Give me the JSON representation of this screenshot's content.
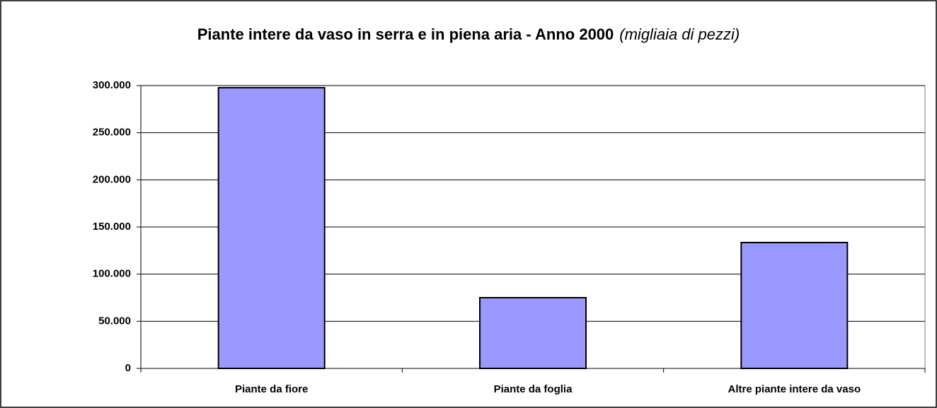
{
  "chart_data": {
    "type": "bar",
    "title": "Piante intere da vaso in serra e in piena aria - Anno 2000",
    "subtitle": "(migliaia di pezzi)",
    "categories": [
      "Piante da fiore",
      "Piante da foglia",
      "Altre piante intere da vaso"
    ],
    "values": [
      297700,
      75000,
      133500
    ],
    "color": "#9999ff",
    "ylim": [
      0,
      300000
    ],
    "yticks": [
      0,
      {
        "value": 50000,
        "label": "50.000"
      },
      {
        "value": 100000,
        "label": "100.000"
      },
      {
        "value": 150000,
        "label": "150.000"
      },
      {
        "value": 200000,
        "label": "200.000"
      },
      {
        "value": 250000,
        "label": "250.000"
      },
      {
        "value": 300000,
        "label": "300.000"
      }
    ],
    "grid": true
  }
}
